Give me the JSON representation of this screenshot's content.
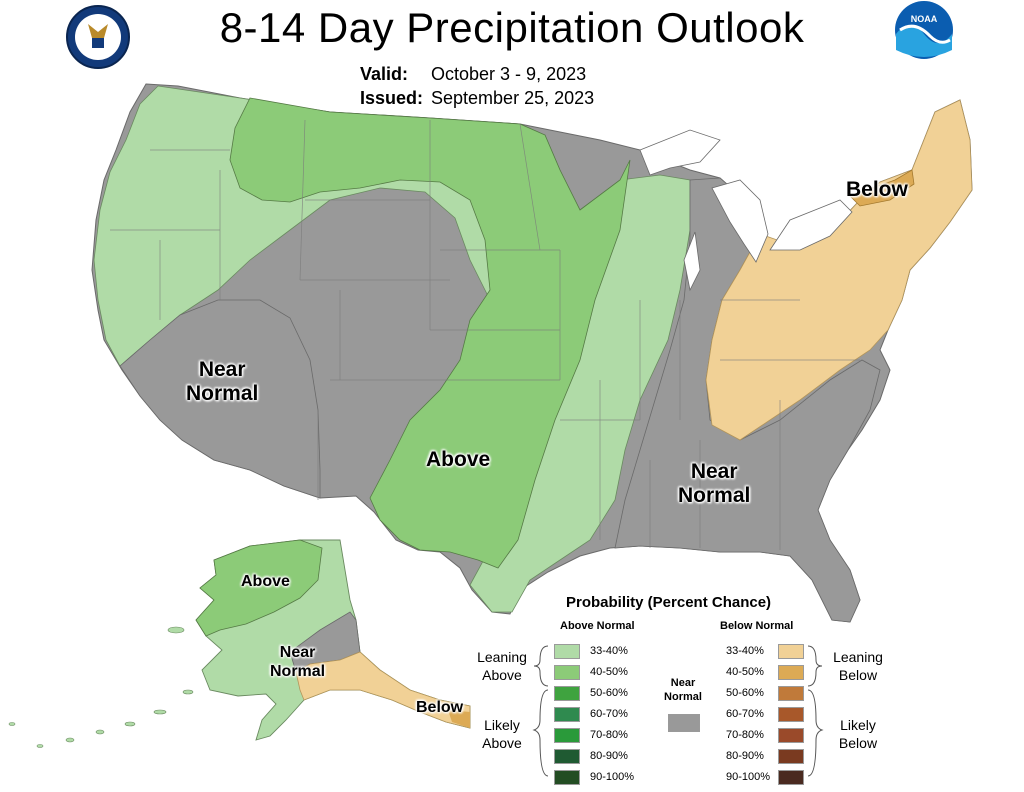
{
  "title": "8-14 Day Precipitation Outlook",
  "valid_label": "Valid:",
  "valid_dates": "October 3 - 9, 2023",
  "issued_label": "Issued:",
  "issued_date": "September 25, 2023",
  "logos": {
    "left": "seal-icon",
    "right": "noaa-logo-icon"
  },
  "regions": {
    "below_ne": "Below",
    "near_sw": [
      "Near",
      "Normal"
    ],
    "above_plains": "Above",
    "near_se": [
      "Near",
      "Normal"
    ],
    "ak_above": "Above",
    "ak_near": [
      "Near",
      "Normal"
    ],
    "ak_below": "Below"
  },
  "legend": {
    "title": "Probability (Percent Chance)",
    "above_head": "Above Normal",
    "below_head": "Below Normal",
    "near_head": [
      "Near",
      "Normal"
    ],
    "leaning_above": [
      "Leaning",
      "Above"
    ],
    "likely_above": [
      "Likely",
      "Above"
    ],
    "leaning_below": [
      "Leaning",
      "Below"
    ],
    "likely_below": [
      "Likely",
      "Below"
    ],
    "above_rows": [
      {
        "label": "33-40%",
        "color": "#b0dba7"
      },
      {
        "label": "40-50%",
        "color": "#8ccb78"
      },
      {
        "label": "50-60%",
        "color": "#3fa33f"
      },
      {
        "label": "60-70%",
        "color": "#2f8a4f"
      },
      {
        "label": "70-80%",
        "color": "#2a9a3a"
      },
      {
        "label": "80-90%",
        "color": "#1f5a32"
      },
      {
        "label": "90-100%",
        "color": "#234d23"
      }
    ],
    "below_rows": [
      {
        "label": "33-40%",
        "color": "#f1d196"
      },
      {
        "label": "40-50%",
        "color": "#dcaa55"
      },
      {
        "label": "50-60%",
        "color": "#c07a3a"
      },
      {
        "label": "60-70%",
        "color": "#a8582a"
      },
      {
        "label": "70-80%",
        "color": "#9a4a2a"
      },
      {
        "label": "80-90%",
        "color": "#7a3a20"
      },
      {
        "label": "90-100%",
        "color": "#4a2a20"
      }
    ],
    "near_color": "#999999"
  }
}
